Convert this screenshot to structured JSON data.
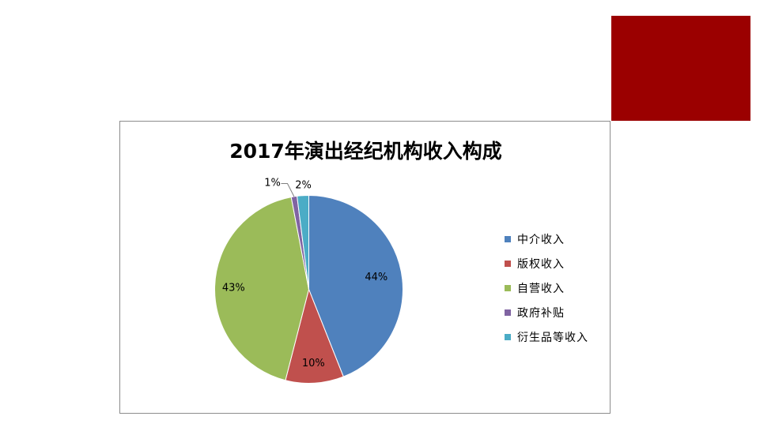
{
  "decoration": {
    "accent_color": "#9b0000"
  },
  "chart_data": {
    "type": "pie",
    "title": "2017年演出经纪机构收入构成",
    "legend": {
      "placement": "right"
    },
    "slices": [
      {
        "label": "中介收入",
        "value": 44,
        "display": "44%",
        "color": "#4f81bd"
      },
      {
        "label": "版权收入",
        "value": 10,
        "display": "10%",
        "color": "#c0504d"
      },
      {
        "label": "自营收入",
        "value": 43,
        "display": "43%",
        "color": "#9bbb59"
      },
      {
        "label": "政府补贴",
        "value": 1,
        "display": "1%",
        "color": "#8064a2"
      },
      {
        "label": "衍生品等收入",
        "value": 2,
        "display": "2%",
        "color": "#4bacc6"
      }
    ]
  }
}
